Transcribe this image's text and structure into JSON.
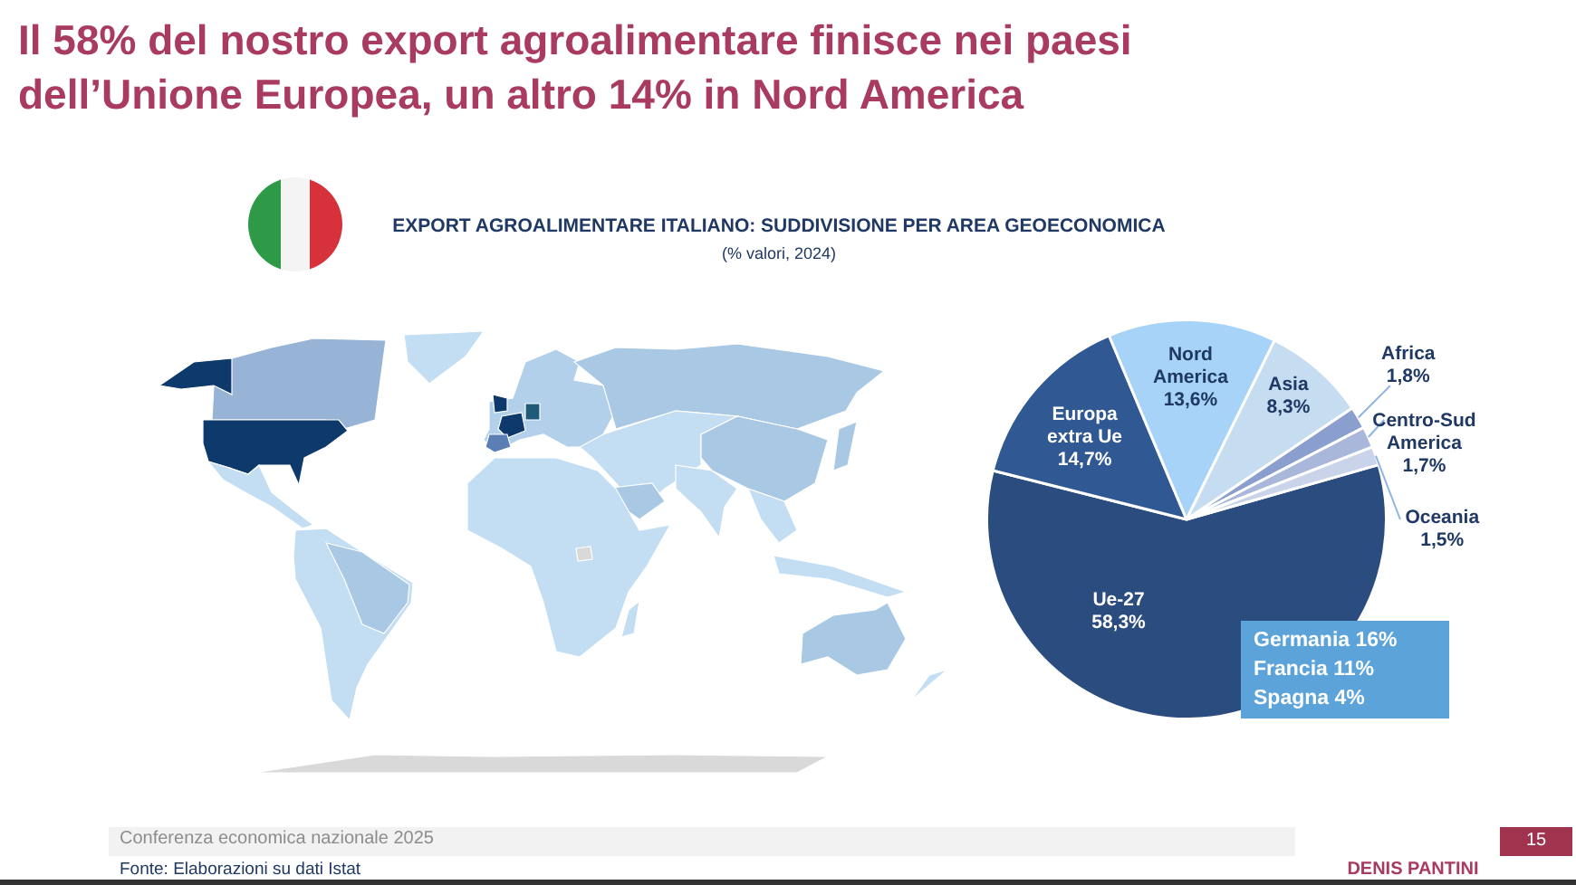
{
  "chart_data": {
    "type": "pie",
    "title": "Il 58% del nostro export agroalimentare finisce nei paesi dell’Unione Europea, un altro 14% in Nord America",
    "subtitle": "EXPORT AGROALIMENTARE ITALIANO: SUDDIVISIONE PER AREA GEOECONOMICA",
    "categories": [
      "Ue-27",
      "Europa extra Ue",
      "Nord America",
      "Asia",
      "Africa",
      "Centro-Sud America",
      "Oceania"
    ],
    "values": [
      58.3,
      14.7,
      13.6,
      8.3,
      1.8,
      1.7,
      1.5
    ],
    "colors": [
      "#2b4c7e",
      "#305893",
      "#a6d3f7",
      "#c6dcf0",
      "#8a9fce",
      "#a9b7da",
      "#c9d3ea"
    ],
    "value_labels": [
      "58,3%",
      "14,7%",
      "13,6%",
      "8,3%",
      "1,8%",
      "1,7%",
      "1,5%"
    ],
    "annotations": [
      "(% valori, 2024)",
      "Germania 16%\nFrancia 11%\nSpagna 4%",
      "Conferenza economica nazionale 2025",
      "Fonte: Elaborazioni su dati Istat",
      "DENIS PANTINI",
      "15"
    ],
    "legend": false
  }
}
